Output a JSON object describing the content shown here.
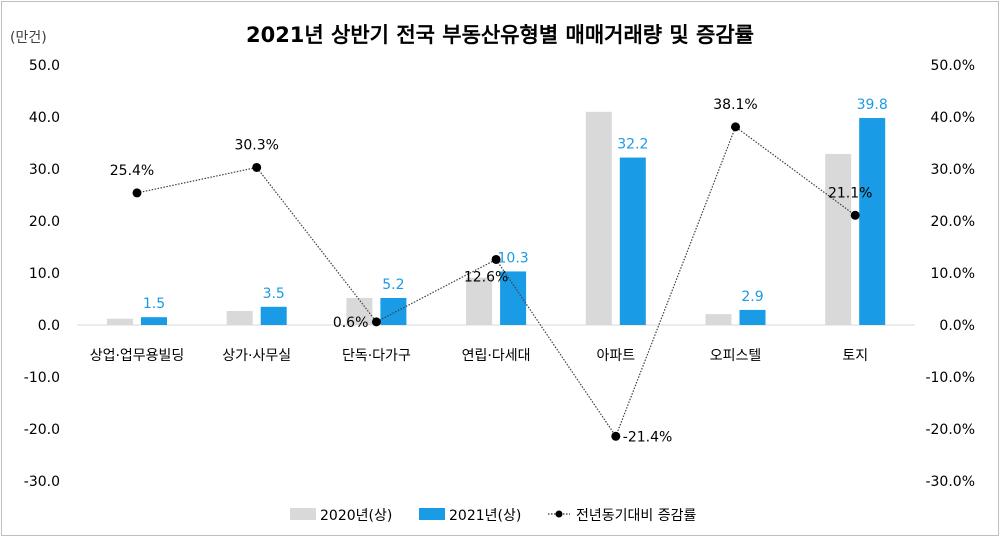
{
  "chart_data": {
    "type": "bar",
    "title": "2021년 상반기 전국 부동산유형별 매매거래량 및 증감률",
    "y_unit": "(만건)",
    "categories": [
      "상업·업무용빌딩",
      "상가·사무실",
      "단독·다가구",
      "연립·다세대",
      "아파트",
      "오피스텔",
      "토지"
    ],
    "series": [
      {
        "name": "2020년(상)",
        "type": "bar",
        "axis": "left",
        "color": "#d9d9d9",
        "values": [
          1.2,
          2.7,
          5.2,
          9.1,
          41.0,
          2.1,
          32.9
        ]
      },
      {
        "name": "2021년(상)",
        "type": "bar",
        "axis": "left",
        "color": "#1a9be6",
        "values": [
          1.5,
          3.5,
          5.2,
          10.3,
          32.2,
          2.9,
          39.8
        ],
        "labels": [
          "1.5",
          "3.5",
          "5.2",
          "10.3",
          "32.2",
          "2.9",
          "39.8"
        ]
      },
      {
        "name": "전년동기대비 증감률",
        "type": "line",
        "axis": "right",
        "color": "#000000",
        "values": [
          25.4,
          30.3,
          0.6,
          12.6,
          -21.4,
          38.1,
          21.1
        ],
        "labels": [
          "25.4%",
          "30.3%",
          "0.6%",
          "12.6%",
          "-21.4%",
          "38.1%",
          "21.1%"
        ]
      }
    ],
    "left_axis": {
      "ylim": [
        -30,
        50
      ],
      "ticks": [
        "50.0",
        "40.0",
        "30.0",
        "20.0",
        "10.0",
        "0.0",
        "-10.0",
        "-20.0",
        "-30.0"
      ]
    },
    "right_axis": {
      "ylim": [
        -30,
        50
      ],
      "ticks": [
        "50.0%",
        "40.0%",
        "30.0%",
        "20.0%",
        "10.0%",
        "0.0%",
        "-10.0%",
        "-20.0%",
        "-30.0%"
      ]
    },
    "grid": false,
    "legend": "bottom"
  }
}
